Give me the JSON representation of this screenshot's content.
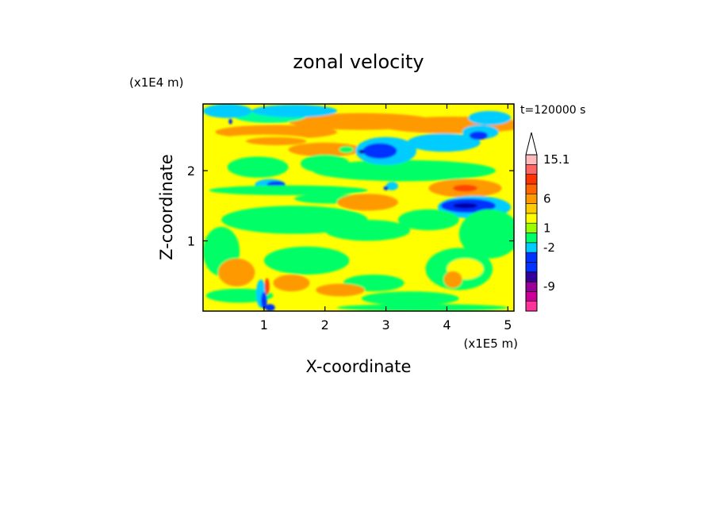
{
  "chart_data": {
    "type": "heatmap",
    "title": "zonal velocity",
    "xlabel": "X-coordinate",
    "ylabel": "Z-coordinate",
    "x_scale_label": "(x1E5 m)",
    "y_scale_label": "(x1E4 m)",
    "time_label": "t=120000 s",
    "xlim": [
      0.0,
      5.1
    ],
    "ylim": [
      0.0,
      2.95
    ],
    "x_ticks": [
      "1",
      "2",
      "3",
      "4",
      "5"
    ],
    "x_tick_values": [
      1,
      2,
      3,
      4,
      5
    ],
    "y_ticks": [
      "1",
      "2"
    ],
    "y_tick_values": [
      1,
      2
    ],
    "background_color": "#ffff00",
    "features": [
      {
        "cx": 1.2,
        "cy": 2.55,
        "rx": 1.0,
        "ry": 0.1,
        "color": "#ff9900"
      },
      {
        "cx": 2.6,
        "cy": 2.7,
        "rx": 1.2,
        "ry": 0.12,
        "color": "#ff9900"
      },
      {
        "cx": 4.1,
        "cy": 2.65,
        "rx": 1.2,
        "ry": 0.12,
        "color": "#ff9900"
      },
      {
        "cx": 1.1,
        "cy": 2.78,
        "rx": 0.6,
        "ry": 0.1,
        "color": "#00ff99"
      },
      {
        "cx": 0.4,
        "cy": 2.85,
        "rx": 0.4,
        "ry": 0.1,
        "color": "#00ccff"
      },
      {
        "cx": 1.5,
        "cy": 2.85,
        "rx": 0.7,
        "ry": 0.09,
        "color": "#00ccff"
      },
      {
        "cx": 4.7,
        "cy": 2.75,
        "rx": 0.35,
        "ry": 0.1,
        "color": "#00ccff"
      },
      {
        "cx": 0.45,
        "cy": 2.7,
        "rx": 0.03,
        "ry": 0.04,
        "color": "#0033ff"
      },
      {
        "cx": 1.0,
        "cy": 2.43,
        "rx": 0.8,
        "ry": 0.08,
        "color": "#ffff00"
      },
      {
        "cx": 1.2,
        "cy": 2.42,
        "rx": 0.5,
        "ry": 0.06,
        "color": "#ff9900"
      },
      {
        "cx": 2.0,
        "cy": 2.3,
        "rx": 0.6,
        "ry": 0.1,
        "color": "#ff9900"
      },
      {
        "cx": 0.9,
        "cy": 2.05,
        "rx": 0.5,
        "ry": 0.15,
        "color": "#00ff66"
      },
      {
        "cx": 2.0,
        "cy": 2.1,
        "rx": 0.4,
        "ry": 0.13,
        "color": "#00ff66"
      },
      {
        "cx": 2.35,
        "cy": 2.3,
        "rx": 0.12,
        "ry": 0.05,
        "color": "#00ff66"
      },
      {
        "cx": 3.3,
        "cy": 2.0,
        "rx": 1.5,
        "ry": 0.15,
        "color": "#00ff66"
      },
      {
        "cx": 3.0,
        "cy": 2.28,
        "rx": 0.5,
        "ry": 0.2,
        "color": "#00ccff"
      },
      {
        "cx": 2.9,
        "cy": 2.28,
        "rx": 0.28,
        "ry": 0.11,
        "color": "#0033ff"
      },
      {
        "cx": 2.6,
        "cy": 2.27,
        "rx": 0.05,
        "ry": 0.03,
        "color": "#0000aa"
      },
      {
        "cx": 3.95,
        "cy": 2.4,
        "rx": 0.6,
        "ry": 0.13,
        "color": "#00ccff"
      },
      {
        "cx": 4.55,
        "cy": 2.55,
        "rx": 0.3,
        "ry": 0.1,
        "color": "#00ccff"
      },
      {
        "cx": 4.52,
        "cy": 2.5,
        "rx": 0.15,
        "ry": 0.06,
        "color": "#0033ff"
      },
      {
        "cx": 1.1,
        "cy": 1.8,
        "rx": 0.25,
        "ry": 0.08,
        "color": "#00ccff"
      },
      {
        "cx": 1.2,
        "cy": 1.8,
        "rx": 0.15,
        "ry": 0.05,
        "color": "#0033ff"
      },
      {
        "cx": 3.1,
        "cy": 1.78,
        "rx": 0.1,
        "ry": 0.06,
        "color": "#00ccff"
      },
      {
        "cx": 3.0,
        "cy": 1.75,
        "rx": 0.04,
        "ry": 0.03,
        "color": "#0033ff"
      },
      {
        "cx": 1.4,
        "cy": 1.72,
        "rx": 1.3,
        "ry": 0.07,
        "color": "#00ff66"
      },
      {
        "cx": 2.1,
        "cy": 1.6,
        "rx": 0.6,
        "ry": 0.07,
        "color": "#00ff66"
      },
      {
        "cx": 2.7,
        "cy": 1.55,
        "rx": 0.5,
        "ry": 0.12,
        "color": "#ff9900"
      },
      {
        "cx": 4.3,
        "cy": 1.75,
        "rx": 0.6,
        "ry": 0.13,
        "color": "#ff9900"
      },
      {
        "cx": 4.3,
        "cy": 1.75,
        "rx": 0.2,
        "ry": 0.05,
        "color": "#ff4400"
      },
      {
        "cx": 4.45,
        "cy": 1.48,
        "rx": 0.6,
        "ry": 0.16,
        "color": "#00ccff"
      },
      {
        "cx": 4.35,
        "cy": 1.5,
        "rx": 0.45,
        "ry": 0.1,
        "color": "#0033ff"
      },
      {
        "cx": 4.3,
        "cy": 1.5,
        "rx": 0.2,
        "ry": 0.04,
        "color": "#0000aa"
      },
      {
        "cx": 1.5,
        "cy": 1.3,
        "rx": 1.2,
        "ry": 0.2,
        "color": "#00ff66"
      },
      {
        "cx": 2.7,
        "cy": 1.15,
        "rx": 0.7,
        "ry": 0.15,
        "color": "#00ff66"
      },
      {
        "cx": 3.7,
        "cy": 1.3,
        "rx": 0.5,
        "ry": 0.15,
        "color": "#00ff66"
      },
      {
        "cx": 4.7,
        "cy": 1.1,
        "rx": 0.5,
        "ry": 0.35,
        "color": "#00ff66"
      },
      {
        "cx": 0.3,
        "cy": 0.85,
        "rx": 0.3,
        "ry": 0.35,
        "color": "#00ff66"
      },
      {
        "cx": 1.7,
        "cy": 0.72,
        "rx": 0.7,
        "ry": 0.2,
        "color": "#00ff66"
      },
      {
        "cx": 4.2,
        "cy": 0.6,
        "rx": 0.55,
        "ry": 0.3,
        "color": "#00ff66"
      },
      {
        "cx": 4.3,
        "cy": 0.6,
        "rx": 0.3,
        "ry": 0.15,
        "color": "#ffff00"
      },
      {
        "cx": 4.1,
        "cy": 0.45,
        "rx": 0.15,
        "ry": 0.12,
        "color": "#ff9900"
      },
      {
        "cx": 0.55,
        "cy": 0.55,
        "rx": 0.3,
        "ry": 0.2,
        "color": "#ff9900"
      },
      {
        "cx": 1.45,
        "cy": 0.4,
        "rx": 0.3,
        "ry": 0.12,
        "color": "#ff9900"
      },
      {
        "cx": 2.8,
        "cy": 0.4,
        "rx": 0.5,
        "ry": 0.12,
        "color": "#00ff66"
      },
      {
        "cx": 2.25,
        "cy": 0.3,
        "rx": 0.4,
        "ry": 0.09,
        "color": "#ff9900"
      },
      {
        "cx": 0.6,
        "cy": 0.22,
        "rx": 0.55,
        "ry": 0.1,
        "color": "#00ff66"
      },
      {
        "cx": 3.4,
        "cy": 0.18,
        "rx": 0.8,
        "ry": 0.1,
        "color": "#00ff66"
      },
      {
        "cx": 3.6,
        "cy": 0.05,
        "rx": 1.4,
        "ry": 0.05,
        "color": "#00ff66"
      },
      {
        "cx": 0.95,
        "cy": 0.25,
        "rx": 0.08,
        "ry": 0.2,
        "color": "#00ccff"
      },
      {
        "cx": 1.0,
        "cy": 0.15,
        "rx": 0.05,
        "ry": 0.12,
        "color": "#0033ff"
      },
      {
        "cx": 1.05,
        "cy": 0.35,
        "rx": 0.04,
        "ry": 0.12,
        "color": "#ff4400"
      },
      {
        "cx": 1.1,
        "cy": 0.05,
        "rx": 0.08,
        "ry": 0.05,
        "color": "#0033ff"
      }
    ],
    "colorbar": {
      "bins": [
        {
          "color": "#ff3399"
        },
        {
          "color": "#cc0099"
        },
        {
          "color": "#990099"
        },
        {
          "color": "#330099"
        },
        {
          "color": "#0033ff"
        },
        {
          "color": "#0033ff"
        },
        {
          "color": "#00ccff"
        },
        {
          "color": "#00ff66"
        },
        {
          "color": "#99ff00"
        },
        {
          "color": "#ffff00"
        },
        {
          "color": "#ffcc00"
        },
        {
          "color": "#ff9900"
        },
        {
          "color": "#ff6600"
        },
        {
          "color": "#ff3300"
        },
        {
          "color": "#ff6666"
        },
        {
          "color": "#ffbbbb"
        }
      ],
      "labels": [
        {
          "text": "-9",
          "bin": 2
        },
        {
          "text": "-2",
          "bin": 6
        },
        {
          "text": "1",
          "bin": 8
        },
        {
          "text": "6",
          "bin": 11
        },
        {
          "text": "15.1",
          "bin": 15
        }
      ]
    }
  }
}
